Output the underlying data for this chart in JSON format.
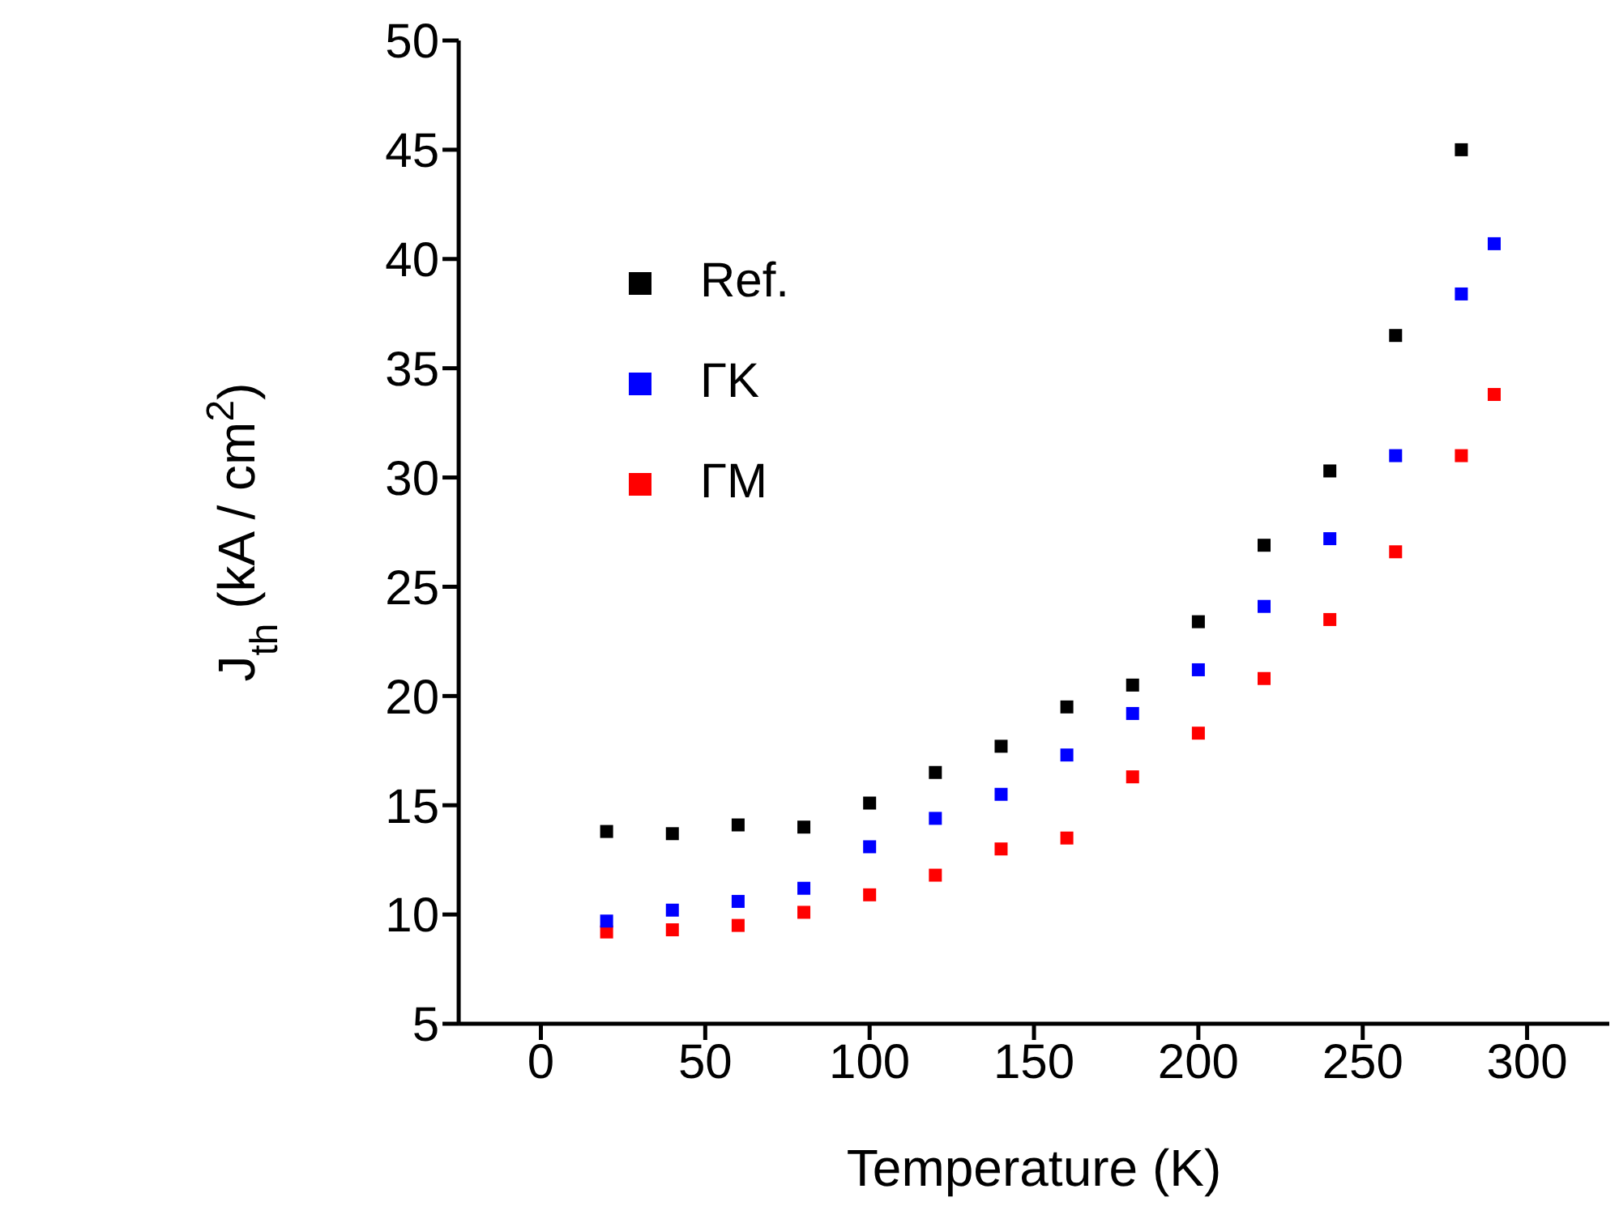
{
  "chart_data": {
    "type": "scatter",
    "xlabel": "Temperature (K)",
    "ylabel": "J$_{th}$ (kA / cm$^{2}$)",
    "xlim": [
      -25,
      325
    ],
    "xticks": [
      0,
      50,
      100,
      150,
      200,
      250,
      300
    ],
    "ylim": [
      5,
      50
    ],
    "yticks": [
      5,
      10,
      15,
      20,
      25,
      30,
      35,
      40,
      45,
      50
    ],
    "grid": false,
    "legend": "top left",
    "marker": "square",
    "series": [
      {
        "name": "Ref.",
        "color": "#000000",
        "x": [
          20,
          40,
          60,
          80,
          100,
          120,
          140,
          160,
          180,
          200,
          220,
          240,
          260,
          280
        ],
        "values": [
          13.8,
          13.7,
          14.1,
          14.0,
          15.1,
          16.5,
          17.7,
          19.5,
          20.5,
          23.4,
          26.9,
          30.3,
          36.5,
          45.0
        ]
      },
      {
        "name": "ΓM",
        "color": "#ff0000",
        "x": [
          20,
          40,
          60,
          80,
          100,
          120,
          140,
          160,
          180,
          200,
          220,
          240,
          260,
          280,
          290
        ],
        "values": [
          9.2,
          9.3,
          9.5,
          10.1,
          10.9,
          11.8,
          13.0,
          13.5,
          16.3,
          18.3,
          20.8,
          23.5,
          26.6,
          31.0,
          33.8
        ]
      },
      {
        "name": "ΓK",
        "color": "#0000ff",
        "x": [
          20,
          40,
          60,
          80,
          100,
          120,
          140,
          160,
          180,
          200,
          220,
          240,
          260,
          280,
          290
        ],
        "values": [
          9.7,
          10.2,
          10.6,
          11.2,
          13.1,
          14.4,
          15.5,
          17.3,
          19.2,
          21.2,
          24.1,
          27.2,
          31.0,
          38.4,
          40.7
        ]
      }
    ]
  }
}
